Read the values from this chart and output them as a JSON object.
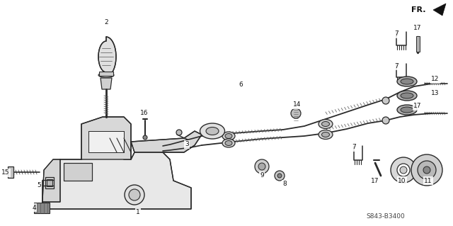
{
  "bg_color": "#ffffff",
  "line_color": "#2a2a2a",
  "part_number": "S843-B3400",
  "fig_w": 6.4,
  "fig_h": 3.19,
  "dpi": 100
}
